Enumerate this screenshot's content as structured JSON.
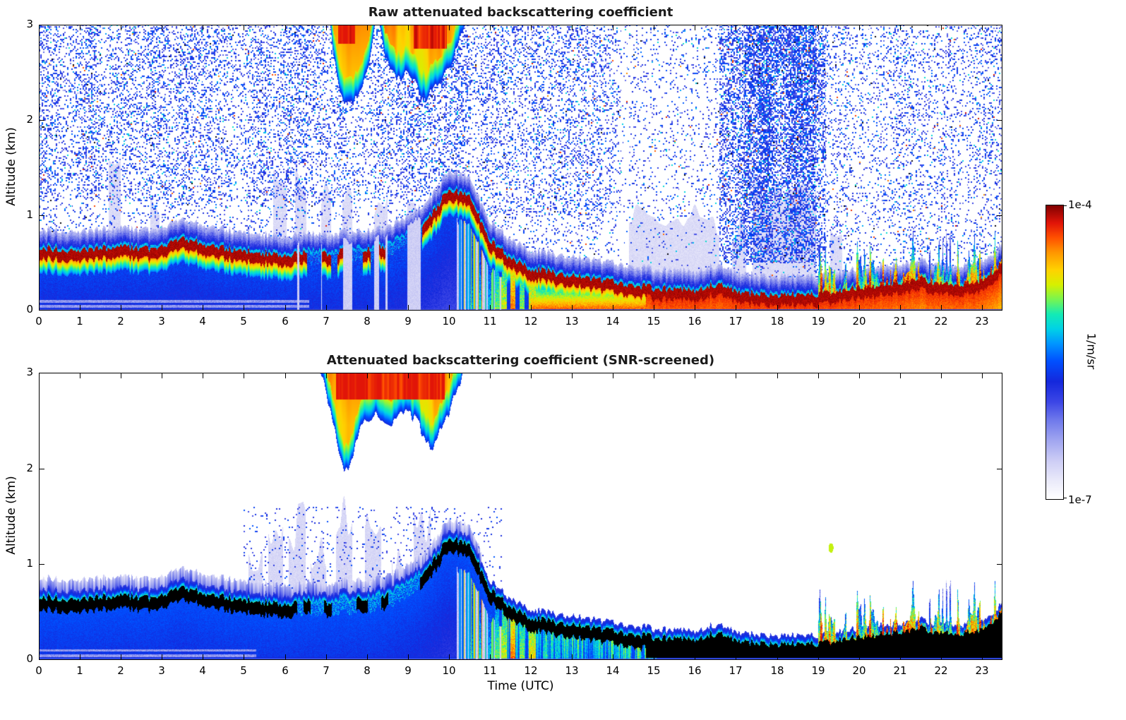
{
  "figure": {
    "bg": "#ffffff",
    "text_color": "#000000",
    "title_color": "#1a1a1a"
  },
  "colorbar": {
    "label": "1/m/sr",
    "max_label": "1e-4",
    "min_label": "1e-7"
  },
  "colormap": {
    "scale_min": "1e-7",
    "scale_max": "1e-4",
    "log": true,
    "stops": [
      [
        0.0,
        "#ffffff"
      ],
      [
        0.06,
        "#ebebfa"
      ],
      [
        0.13,
        "#cdcdf5"
      ],
      [
        0.2,
        "#a0a5f0"
      ],
      [
        0.27,
        "#6e78eb"
      ],
      [
        0.33,
        "#3c46e6"
      ],
      [
        0.4,
        "#1428dc"
      ],
      [
        0.47,
        "#0050ff"
      ],
      [
        0.53,
        "#0096ff"
      ],
      [
        0.58,
        "#00d2e6"
      ],
      [
        0.63,
        "#14ebb4"
      ],
      [
        0.68,
        "#78f550"
      ],
      [
        0.73,
        "#d7f000"
      ],
      [
        0.78,
        "#ffd200"
      ],
      [
        0.84,
        "#ff9600"
      ],
      [
        0.89,
        "#ff5000"
      ],
      [
        0.94,
        "#e11408"
      ],
      [
        1.0,
        "#800000"
      ]
    ]
  },
  "chart_data": [
    {
      "type": "heatmap",
      "title": "Raw attenuated backscattering coefficient",
      "xlabel": "",
      "ylabel": "Altitude (km)",
      "xlim": [
        0,
        23.5
      ],
      "ylim": [
        0,
        3
      ],
      "xticks": [
        0,
        1,
        2,
        3,
        4,
        5,
        6,
        7,
        8,
        9,
        10,
        11,
        12,
        13,
        14,
        15,
        16,
        17,
        18,
        19,
        20,
        21,
        22,
        23
      ],
      "yticks": [
        0,
        1,
        2,
        3
      ],
      "screened": false,
      "value_scale": {
        "min": "1e-7",
        "max": "1e-4",
        "units": "1/m/sr"
      },
      "boundary_layer": {
        "t": [
          0,
          0.5,
          1,
          1.5,
          2,
          2.5,
          3,
          3.5,
          4,
          4.5,
          5,
          5.5,
          6,
          6.5,
          7,
          7.5,
          8,
          8.5,
          9,
          9.5,
          10,
          10.5,
          11,
          11.5,
          12,
          12.5,
          13,
          13.5,
          14,
          14.5,
          15,
          15.5,
          16,
          16.5,
          17,
          17.5,
          18,
          18.5,
          19,
          19.5,
          20,
          20.5,
          21,
          21.5,
          22,
          22.5,
          23,
          23.5
        ],
        "h": [
          0.66,
          0.64,
          0.63,
          0.65,
          0.67,
          0.64,
          0.66,
          0.75,
          0.7,
          0.65,
          0.63,
          0.6,
          0.57,
          0.62,
          0.6,
          0.63,
          0.65,
          0.68,
          0.78,
          0.95,
          1.28,
          1.2,
          0.75,
          0.55,
          0.44,
          0.4,
          0.36,
          0.34,
          0.3,
          0.27,
          0.24,
          0.22,
          0.21,
          0.28,
          0.2,
          0.18,
          0.17,
          0.16,
          0.17,
          0.21,
          0.24,
          0.27,
          0.3,
          0.33,
          0.28,
          0.28,
          0.3,
          0.5
        ]
      },
      "weak_interval": [
        6.3,
        9.35
      ],
      "weak_blobs": [
        [
          6.35,
          6.55
        ],
        [
          6.9,
          7.12
        ],
        [
          7.28,
          7.42
        ],
        [
          7.9,
          8.1
        ],
        [
          8.3,
          8.45
        ]
      ],
      "clouds": [
        {
          "t": [
            7.1,
            7.2,
            7.35,
            7.5,
            7.7,
            7.9,
            8.05,
            8.2
          ],
          "zbot": [
            3.0,
            2.6,
            2.3,
            2.15,
            2.2,
            2.35,
            2.6,
            3.0
          ],
          "red_t": [
            7.3,
            7.72
          ],
          "red_zmin": 2.8
        },
        {
          "t": [
            8.3,
            8.45,
            8.6,
            8.8,
            9.0,
            9.2,
            9.4,
            9.6,
            9.8,
            10.0,
            10.2,
            10.4
          ],
          "zbot": [
            3.0,
            2.7,
            2.5,
            2.45,
            2.5,
            2.4,
            2.2,
            2.3,
            2.4,
            2.55,
            2.75,
            3.0
          ],
          "red_t": [
            9.15,
            9.95
          ],
          "red_zmin": 2.75
        }
      ],
      "pale_columns": [
        [
          1.7,
          2.0,
          1.35
        ],
        [
          2.72,
          2.95,
          1.1
        ],
        [
          3.3,
          3.5,
          0.95
        ],
        [
          5.72,
          6.05,
          1.25
        ],
        [
          6.25,
          6.52,
          1.3
        ],
        [
          6.88,
          7.12,
          1.2
        ],
        [
          7.4,
          7.65,
          1.25
        ],
        [
          8.18,
          8.5,
          1.15
        ],
        [
          8.98,
          9.32,
          1.05
        ],
        [
          14.4,
          16.6,
          0.95
        ],
        [
          16.9,
          17.25,
          0.9
        ],
        [
          17.4,
          18.95,
          1.25
        ],
        [
          19.3,
          19.6,
          0.8
        ]
      ],
      "precip_streaks": [
        [
          10.52,
          10.6,
          0.55
        ],
        [
          10.72,
          10.82,
          0.6
        ],
        [
          10.95,
          11.05,
          0.58
        ],
        [
          11.12,
          11.22,
          0.68
        ],
        [
          11.3,
          11.42,
          0.74
        ],
        [
          11.5,
          11.62,
          0.86
        ],
        [
          11.72,
          11.85,
          0.7
        ],
        [
          11.95,
          12.12,
          0.78
        ],
        [
          12.3,
          12.42,
          0.62
        ],
        [
          12.6,
          12.72,
          0.58
        ]
      ],
      "warm_subband": [
        11.35,
        15.1
      ],
      "spiky_tail_start": 19.0,
      "noise": {
        "early": 0.26,
        "mid": 0.2,
        "sparse": 0.08,
        "dense": 0.42,
        "dense_core": 0.62,
        "tail": 0.16,
        "dense_t": [
          16.6,
          19.2
        ],
        "dense_core_t": [
          17.2,
          18.95
        ]
      }
    },
    {
      "type": "heatmap",
      "title": "Attenuated backscattering coefficient (SNR-screened)",
      "xlabel": "Time (UTC)",
      "ylabel": "Altitude (km)",
      "xlim": [
        0,
        23.5
      ],
      "ylim": [
        0,
        3
      ],
      "xticks": [
        0,
        1,
        2,
        3,
        4,
        5,
        6,
        7,
        8,
        9,
        10,
        11,
        12,
        13,
        14,
        15,
        16,
        17,
        18,
        19,
        20,
        21,
        22,
        23
      ],
      "yticks": [
        0,
        1,
        2,
        3
      ],
      "screened": true,
      "value_scale": {
        "min": "1e-7",
        "max": "1e-4",
        "units": "1/m/sr"
      },
      "boundary_layer": {
        "t": [
          0,
          0.5,
          1,
          1.5,
          2,
          2.5,
          3,
          3.5,
          4,
          4.5,
          5,
          5.5,
          6,
          6.5,
          7,
          7.5,
          8,
          8.5,
          9,
          9.5,
          10,
          10.5,
          11,
          11.5,
          12,
          12.5,
          13,
          13.5,
          14,
          14.5,
          15,
          15.5,
          16,
          16.5,
          17,
          17.5,
          18,
          18.5,
          19,
          19.5,
          20,
          20.5,
          21,
          21.5,
          22,
          22.5,
          23,
          23.5
        ],
        "h": [
          0.66,
          0.64,
          0.63,
          0.65,
          0.67,
          0.64,
          0.66,
          0.75,
          0.7,
          0.65,
          0.63,
          0.6,
          0.57,
          0.62,
          0.6,
          0.63,
          0.65,
          0.68,
          0.78,
          0.95,
          1.28,
          1.2,
          0.75,
          0.55,
          0.44,
          0.4,
          0.36,
          0.34,
          0.3,
          0.27,
          0.24,
          0.22,
          0.21,
          0.28,
          0.2,
          0.18,
          0.17,
          0.16,
          0.17,
          0.21,
          0.24,
          0.27,
          0.3,
          0.33,
          0.28,
          0.28,
          0.3,
          0.5
        ]
      },
      "weak_interval": [
        6.3,
        9.3
      ],
      "weak_blobs": [
        [
          6.45,
          6.62
        ],
        [
          6.95,
          7.15
        ],
        [
          7.75,
          8.02
        ],
        [
          8.35,
          8.52
        ]
      ],
      "clouds": [
        {
          "t": [
            6.85,
            7.0,
            7.15,
            7.3,
            7.45,
            7.55,
            7.7,
            7.85,
            8.0,
            8.2,
            8.4,
            8.6,
            8.8,
            9.0,
            9.2,
            9.4,
            9.55,
            9.7,
            9.85,
            10.0,
            10.15,
            10.35
          ],
          "zbot": [
            3.0,
            2.8,
            2.5,
            2.2,
            2.0,
            1.95,
            2.2,
            2.45,
            2.5,
            2.55,
            2.5,
            2.45,
            2.55,
            2.6,
            2.5,
            2.35,
            2.2,
            2.3,
            2.5,
            2.6,
            2.75,
            3.0
          ],
          "red_t": [
            7.25,
            9.9
          ],
          "red_zmin": 2.72
        }
      ],
      "plumes": [
        [
          5.12,
          5.45,
          1.05
        ],
        [
          5.6,
          5.95,
          1.3
        ],
        [
          6.1,
          6.5,
          1.38
        ],
        [
          6.62,
          7.0,
          1.15
        ],
        [
          7.25,
          7.65,
          1.5
        ],
        [
          7.95,
          8.35,
          1.28
        ],
        [
          8.6,
          9.0,
          1.05
        ],
        [
          9.15,
          9.55,
          1.35
        ],
        [
          9.7,
          10.0,
          1.1
        ]
      ],
      "precip_streaks": [
        [
          10.52,
          10.6,
          0.55
        ],
        [
          10.72,
          10.82,
          0.6
        ],
        [
          10.95,
          11.05,
          0.58
        ],
        [
          11.12,
          11.22,
          0.68
        ],
        [
          11.3,
          11.42,
          0.74
        ],
        [
          11.5,
          11.62,
          0.86
        ],
        [
          11.72,
          11.85,
          0.7
        ],
        [
          11.95,
          12.12,
          0.78
        ],
        [
          12.3,
          12.42,
          0.62
        ],
        [
          12.6,
          12.72,
          0.58
        ]
      ],
      "warm_subband": [
        11.35,
        15.1
      ],
      "spiky_tail_start": 19.0,
      "isolated_echo": {
        "t": 19.32,
        "z": 1.17,
        "u": 0.72
      }
    }
  ]
}
